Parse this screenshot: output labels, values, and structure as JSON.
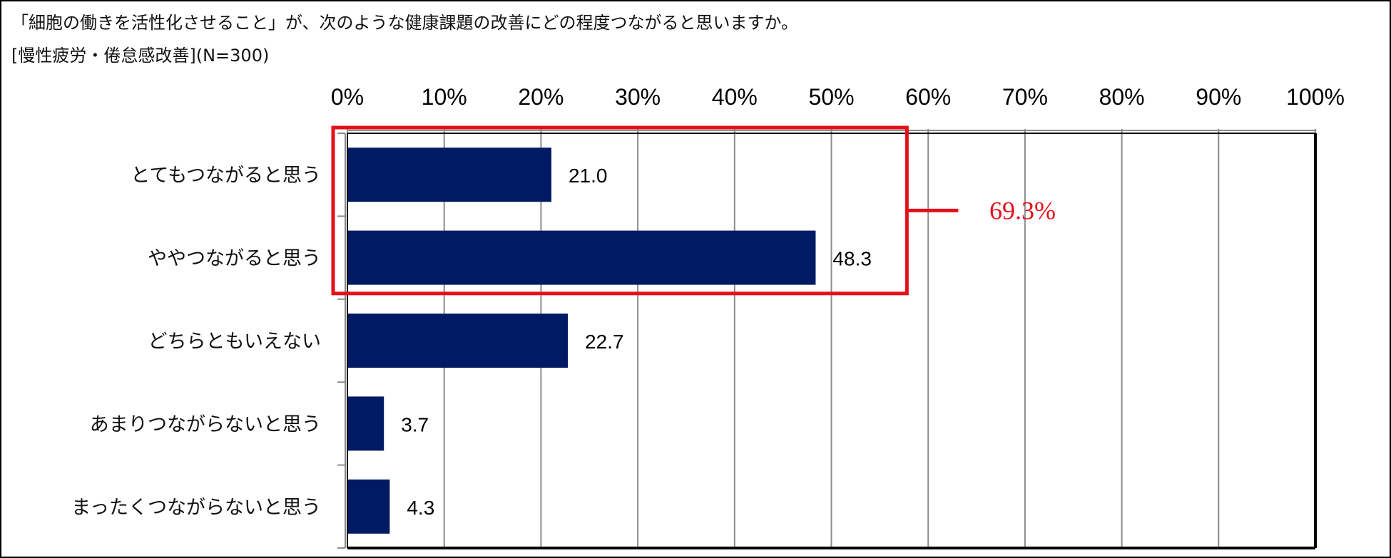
{
  "title": "「細胞の働きを活性化させること」が、次のような健康課題の改善にどの程度つながると思いますか。",
  "subtitle": "[慢性疲労・倦怠感改善](N=300)",
  "colors": {
    "bar": "#001a63",
    "highlight": "#e3101a",
    "grid": "#8c8c8c",
    "axis": "#000000"
  },
  "chart_data": {
    "type": "bar",
    "orientation": "horizontal",
    "categories": [
      "とてもつながると思う",
      "ややつながると思う",
      "どちらともいえない",
      "あまりつながらないと思う",
      "まったくつながらないと思う"
    ],
    "values": [
      21.0,
      48.3,
      22.7,
      3.7,
      4.3
    ],
    "value_labels": [
      "21.0",
      "48.3",
      "22.7",
      "3.7",
      "4.3"
    ],
    "xlim": [
      0,
      100
    ],
    "x_ticks": [
      0,
      10,
      20,
      30,
      40,
      50,
      60,
      70,
      80,
      90,
      100
    ],
    "x_tick_labels": [
      "0%",
      "10%",
      "20%",
      "30%",
      "40%",
      "50%",
      "60%",
      "70%",
      "80%",
      "90%",
      "100%"
    ],
    "x_axis_position": "top",
    "grid": true,
    "legend": "none",
    "annotation": {
      "text": "69.3%",
      "spans_categories": [
        0,
        1
      ]
    }
  }
}
